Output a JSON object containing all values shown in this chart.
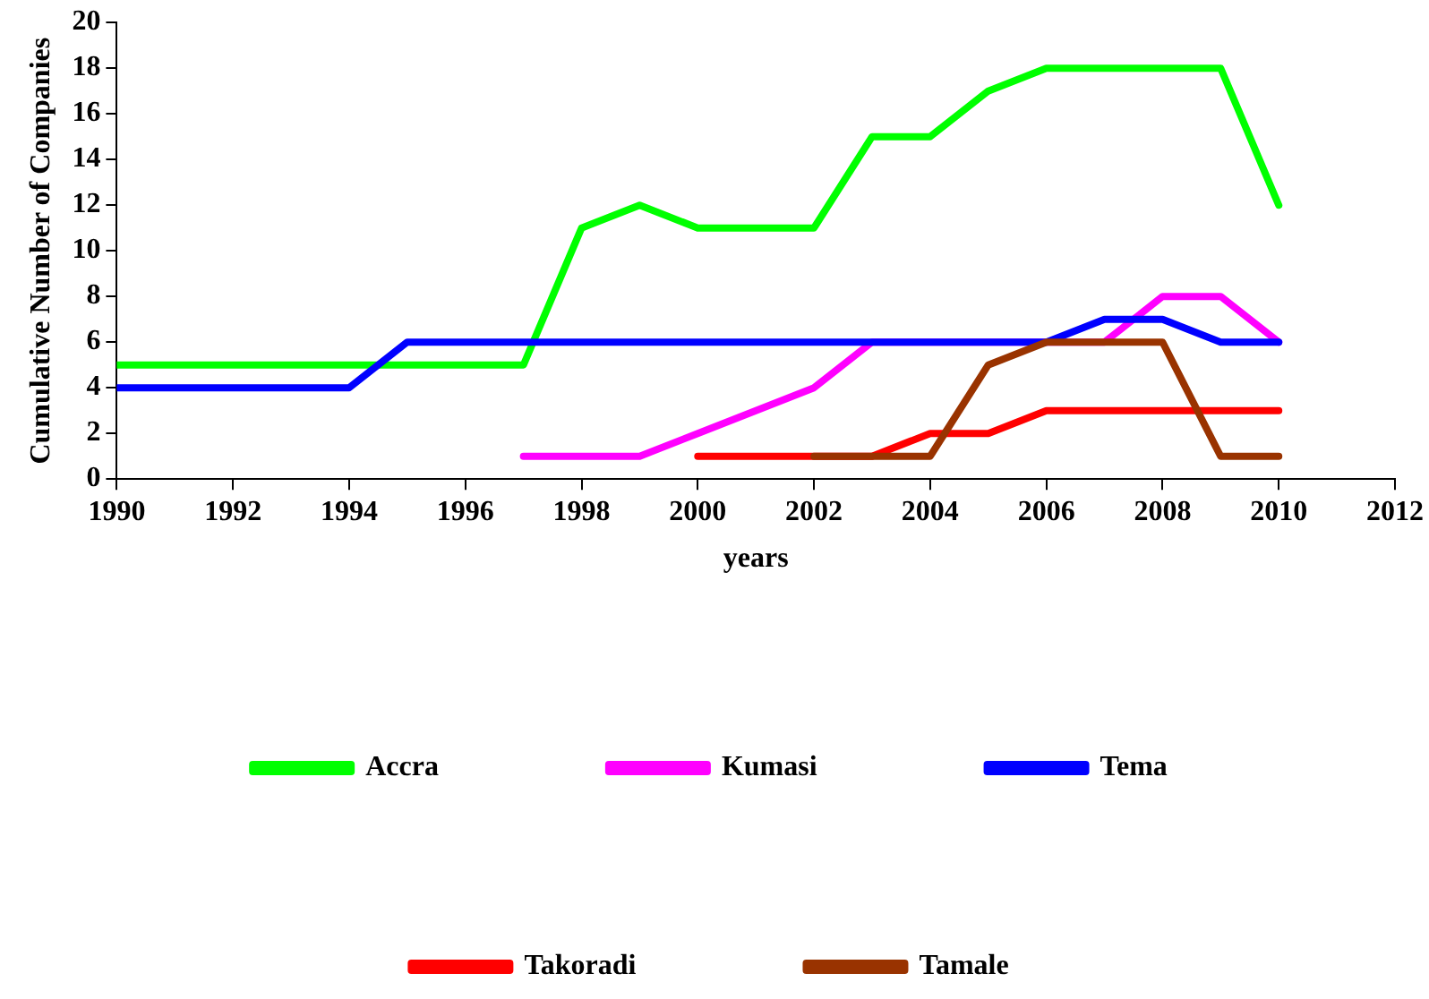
{
  "chart_data": {
    "type": "line",
    "xlabel": "years",
    "ylabel": "Cumulative Number of Companies",
    "xlim": [
      1990,
      2012
    ],
    "xticks": [
      1990,
      1992,
      1994,
      1996,
      1998,
      2000,
      2002,
      2004,
      2006,
      2008,
      2010,
      2012
    ],
    "ylim": [
      0,
      20
    ],
    "yticks": [
      0,
      2,
      4,
      6,
      8,
      10,
      12,
      14,
      16,
      18,
      20
    ],
    "grid": false,
    "legend": "bottom",
    "marker": "none",
    "line_style": "solid",
    "series": [
      {
        "name": "Accra",
        "color": "#00ff00",
        "x": [
          1990,
          1991,
          1992,
          1993,
          1994,
          1995,
          1996,
          1997,
          1998,
          1999,
          2000,
          2001,
          2002,
          2003,
          2004,
          2005,
          2006,
          2007,
          2008,
          2009,
          2010
        ],
        "values": [
          5,
          5,
          5,
          5,
          5,
          5,
          5,
          5,
          11,
          12,
          11,
          11,
          11,
          15,
          15,
          17,
          18,
          18,
          18,
          18,
          12
        ]
      },
      {
        "name": "Kumasi",
        "color": "#ff00ff",
        "x": [
          1997,
          1998,
          1999,
          2000,
          2001,
          2002,
          2003,
          2004,
          2005,
          2006,
          2007,
          2008,
          2009,
          2010
        ],
        "values": [
          1,
          1,
          1,
          2,
          3,
          4,
          6,
          6,
          6,
          6,
          6,
          8,
          8,
          6
        ]
      },
      {
        "name": "Tema",
        "color": "#0000ff",
        "x": [
          1990,
          1991,
          1992,
          1993,
          1994,
          1995,
          1996,
          1997,
          1998,
          1999,
          2000,
          2001,
          2002,
          2003,
          2004,
          2005,
          2006,
          2007,
          2008,
          2009,
          2010
        ],
        "values": [
          4,
          4,
          4,
          4,
          4,
          6,
          6,
          6,
          6,
          6,
          6,
          6,
          6,
          6,
          6,
          6,
          6,
          7,
          7,
          6,
          6
        ]
      },
      {
        "name": "Takoradi",
        "color": "#ff0000",
        "x": [
          2000,
          2001,
          2002,
          2003,
          2004,
          2005,
          2006,
          2007,
          2008,
          2009,
          2010
        ],
        "values": [
          1,
          1,
          1,
          1,
          2,
          2,
          3,
          3,
          3,
          3,
          3
        ]
      },
      {
        "name": "Tamale",
        "color": "#993300",
        "x": [
          2002,
          2003,
          2004,
          2005,
          2006,
          2007,
          2008,
          2009,
          2010
        ],
        "values": [
          1,
          1,
          1,
          5,
          6,
          6,
          6,
          1,
          1
        ]
      }
    ]
  }
}
